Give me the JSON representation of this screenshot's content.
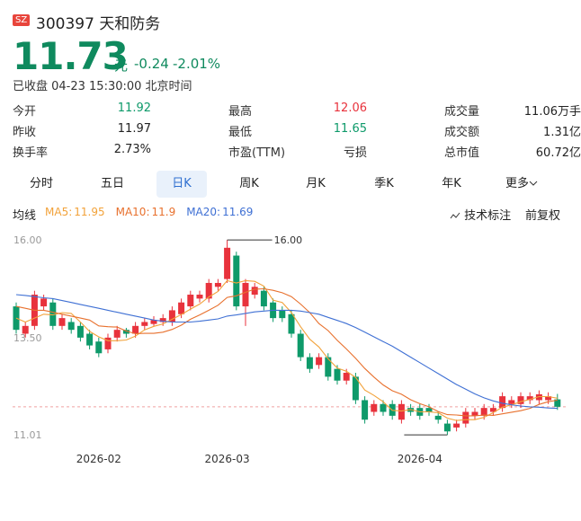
{
  "header": {
    "market": "SZ",
    "code": "300397",
    "name": "天和防务",
    "price": "11.73",
    "unit": "元",
    "change": "-0.24",
    "change_pct": "-2.01%",
    "status": "已收盘 04-23 15:30:00 北京时间"
  },
  "stats": [
    [
      "今开",
      "11.92",
      "最高",
      "12.06",
      "成交量",
      "11.06万手"
    ],
    [
      "昨收",
      "11.97",
      "最低",
      "11.65",
      "成交额",
      "1.31亿"
    ],
    [
      "换手率",
      "2.73%",
      "市盈(TTM)",
      "亏损",
      "总市值",
      "60.72亿"
    ]
  ],
  "tabs": [
    "分时",
    "五日",
    "日K",
    "周K",
    "月K",
    "季K",
    "年K",
    "更多"
  ],
  "toolbar": {
    "ma": "均线",
    "mark": "技术标注",
    "adjust": "前复权"
  },
  "chart_data": {
    "type": "candlestick",
    "categories": [
      null,
      null,
      null,
      null,
      null,
      null,
      null,
      null,
      null,
      "2026-02",
      null,
      null,
      null,
      null,
      null,
      null,
      null,
      null,
      null,
      null,
      null,
      null,
      null,
      "2026-03",
      null,
      null,
      null,
      null,
      null,
      null,
      null,
      null,
      null,
      null,
      null,
      null,
      null,
      null,
      null,
      null,
      null,
      null,
      null,
      null,
      "2026-04",
      null,
      null,
      null,
      null,
      null,
      null,
      null,
      null,
      null,
      null,
      null,
      null,
      null,
      null,
      null
    ],
    "candles": {
      "open": [
        14.3,
        13.6,
        13.8,
        14.3,
        14.4,
        13.8,
        13.9,
        13.8,
        13.6,
        13.4,
        13.2,
        13.5,
        13.7,
        13.6,
        13.8,
        13.85,
        13.9,
        13.9,
        14.1,
        14.3,
        14.5,
        14.5,
        14.8,
        15.0,
        15.6,
        14.3,
        14.6,
        14.7,
        14.4,
        14.2,
        14.1,
        13.6,
        13.0,
        12.8,
        13.0,
        12.7,
        12.4,
        12.5,
        11.9,
        11.6,
        11.8,
        11.8,
        11.4,
        11.7,
        11.7,
        11.7,
        11.5,
        11.3,
        11.2,
        11.3,
        11.5,
        11.5,
        11.6,
        11.7,
        11.8,
        11.8,
        11.9,
        11.9,
        11.9,
        11.92
      ],
      "high": [
        14.4,
        13.9,
        14.7,
        14.6,
        14.5,
        14.1,
        14.0,
        13.9,
        13.7,
        13.5,
        13.6,
        13.8,
        13.75,
        13.9,
        14.0,
        14.05,
        14.1,
        14.3,
        14.5,
        14.7,
        14.7,
        15.0,
        15.0,
        16.0,
        15.7,
        15.0,
        14.9,
        14.8,
        14.5,
        14.3,
        14.2,
        13.7,
        13.1,
        13.1,
        13.1,
        12.8,
        12.7,
        12.6,
        12.0,
        11.9,
        11.9,
        11.9,
        11.9,
        11.8,
        11.8,
        11.8,
        11.6,
        11.4,
        11.4,
        11.7,
        11.7,
        11.8,
        11.8,
        12.1,
        12.0,
        12.1,
        12.1,
        12.15,
        12.1,
        12.06
      ],
      "low": [
        13.6,
        13.5,
        13.7,
        14.2,
        13.7,
        13.7,
        13.6,
        13.4,
        13.2,
        13.0,
        13.1,
        13.4,
        13.5,
        13.5,
        13.7,
        13.8,
        13.8,
        13.8,
        14.0,
        14.2,
        14.4,
        14.4,
        14.7,
        14.9,
        14.2,
        13.8,
        14.5,
        14.2,
        13.9,
        13.9,
        13.5,
        12.9,
        12.6,
        12.7,
        12.4,
        12.3,
        12.3,
        11.8,
        11.3,
        11.5,
        11.5,
        11.4,
        11.3,
        11.5,
        11.4,
        11.5,
        11.3,
        11.01,
        11.1,
        11.2,
        11.4,
        11.4,
        11.5,
        11.6,
        11.7,
        11.7,
        11.8,
        11.8,
        11.8,
        11.65
      ],
      "close": [
        13.7,
        13.8,
        14.6,
        14.5,
        13.8,
        14.0,
        13.7,
        13.5,
        13.3,
        13.1,
        13.5,
        13.7,
        13.6,
        13.8,
        13.9,
        13.95,
        14.0,
        14.2,
        14.4,
        14.6,
        14.6,
        14.9,
        14.9,
        15.8,
        14.3,
        14.9,
        14.8,
        14.3,
        14.0,
        14.0,
        13.6,
        13.0,
        12.7,
        13.0,
        12.5,
        12.4,
        12.6,
        11.9,
        11.4,
        11.8,
        11.6,
        11.5,
        11.8,
        11.6,
        11.5,
        11.6,
        11.4,
        11.1,
        11.3,
        11.6,
        11.6,
        11.7,
        11.7,
        12.0,
        11.9,
        12.0,
        12.0,
        12.05,
        12.0,
        11.73
      ],
      "up_color": "#e8323c",
      "down_color": "#0e9a6a"
    },
    "series": [
      {
        "name": "MA5:",
        "color": "#f2a23a",
        "values": [
          14.0,
          13.9,
          14.0,
          14.1,
          14.08,
          14.14,
          14.12,
          13.9,
          13.66,
          13.52,
          13.42,
          13.42,
          13.44,
          13.54,
          13.7,
          13.79,
          13.85,
          13.97,
          14.09,
          14.23,
          14.36,
          14.54,
          14.68,
          14.96,
          14.9,
          14.96,
          14.94,
          14.82,
          14.46,
          14.4,
          14.14,
          13.78,
          13.46,
          13.26,
          12.96,
          12.72,
          12.64,
          12.48,
          12.16,
          12.02,
          11.86,
          11.64,
          11.62,
          11.66,
          11.6,
          11.6,
          11.58,
          11.44,
          11.38,
          11.4,
          11.4,
          11.46,
          11.58,
          11.72,
          11.78,
          11.86,
          11.92,
          11.99,
          11.99,
          11.95
        ]
      },
      {
        "name": "MA10:",
        "color": "#e8712e",
        "values": [
          14.3,
          14.25,
          14.2,
          14.2,
          14.15,
          14.1,
          14.05,
          14.0,
          13.95,
          13.8,
          13.78,
          13.77,
          13.67,
          13.6,
          13.61,
          13.61,
          13.64,
          13.71,
          13.82,
          13.97,
          14.08,
          14.2,
          14.33,
          14.53,
          14.57,
          14.66,
          14.74,
          14.75,
          14.71,
          14.65,
          14.55,
          14.36,
          14.14,
          13.86,
          13.68,
          13.43,
          13.21,
          12.97,
          12.71,
          12.49,
          12.29,
          12.14,
          12.05,
          11.91,
          11.81,
          11.73,
          11.61,
          11.53,
          11.52,
          11.5,
          11.5,
          11.52,
          11.51,
          11.55,
          11.59,
          11.63,
          11.69,
          11.79,
          11.86,
          11.9
        ]
      },
      {
        "name": "MA20:",
        "color": "#3f70d4",
        "values": [
          14.6,
          14.58,
          14.55,
          14.52,
          14.5,
          14.45,
          14.4,
          14.35,
          14.3,
          14.25,
          14.2,
          14.15,
          14.1,
          14.05,
          14.0,
          13.95,
          13.92,
          13.9,
          13.9,
          13.9,
          13.92,
          13.95,
          13.98,
          14.05,
          14.08,
          14.12,
          14.16,
          14.18,
          14.2,
          14.2,
          14.2,
          14.18,
          14.14,
          14.1,
          14.02,
          13.94,
          13.86,
          13.76,
          13.64,
          13.52,
          13.4,
          13.28,
          13.14,
          13.0,
          12.86,
          12.72,
          12.58,
          12.44,
          12.3,
          12.18,
          12.06,
          11.96,
          11.88,
          11.82,
          11.78,
          11.75,
          11.73,
          11.72,
          11.7,
          11.69
        ]
      }
    ],
    "max_label": "16.00",
    "ylim": [
      10.83,
      16.21
    ],
    "yticks": [
      {
        "value": 16,
        "label": "16.00"
      },
      {
        "value": 13.5,
        "label": "13.50"
      },
      11.01
    ]
  }
}
